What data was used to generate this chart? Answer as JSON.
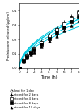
{
  "title": "",
  "xlabel": "Time (h)",
  "ylabel": "Prednisolone released (μg/cm²)",
  "xlim": [
    0,
    8
  ],
  "ylim": [
    0,
    0.45
  ],
  "yticks": [
    0.0,
    0.1,
    0.2,
    0.3,
    0.4
  ],
  "xticks": [
    0,
    1,
    2,
    3,
    4,
    5,
    6,
    7,
    8
  ],
  "series": [
    {
      "label": "kept for 1 day",
      "marker": "o",
      "marker_fill": "white",
      "marker_edge": "black",
      "x": [
        0,
        0.5,
        1,
        1.5,
        2,
        3,
        4,
        5,
        6,
        7,
        8
      ],
      "y": [
        0.0,
        0.058,
        0.088,
        0.112,
        0.135,
        0.178,
        0.222,
        0.265,
        0.305,
        0.348,
        0.388
      ]
    },
    {
      "label": "stored for 2 days",
      "marker": "+",
      "marker_fill": "black",
      "marker_edge": "black",
      "x": [
        0,
        0.5,
        1,
        1.5,
        2,
        3,
        4,
        5,
        6,
        7,
        8
      ],
      "y": [
        0.0,
        0.06,
        0.092,
        0.118,
        0.143,
        0.188,
        0.235,
        0.278,
        0.32,
        0.36,
        0.4
      ]
    },
    {
      "label": "stored for 4 days",
      "marker": "s",
      "marker_fill": "white",
      "marker_edge": "black",
      "x": [
        0,
        0.5,
        1,
        1.5,
        2,
        3,
        4,
        5,
        6,
        7,
        8
      ],
      "y": [
        0.0,
        0.055,
        0.086,
        0.11,
        0.133,
        0.178,
        0.222,
        0.265,
        0.305,
        0.345,
        0.385
      ]
    },
    {
      "label": "stored for 8 days",
      "marker": "s",
      "marker_fill": "black",
      "marker_edge": "black",
      "x": [
        0,
        0.5,
        1,
        1.5,
        2,
        3,
        4,
        5,
        6,
        7,
        8
      ],
      "y": [
        0.0,
        0.05,
        0.08,
        0.103,
        0.125,
        0.166,
        0.207,
        0.247,
        0.285,
        0.32,
        0.355
      ]
    },
    {
      "label": "stored for 10 days",
      "marker": "^",
      "marker_fill": "black",
      "marker_edge": "black",
      "x": [
        0,
        0.5,
        1,
        1.5,
        2,
        3,
        4,
        5,
        6,
        7,
        8
      ],
      "y": [
        0.0,
        0.044,
        0.072,
        0.093,
        0.113,
        0.151,
        0.188,
        0.225,
        0.26,
        0.294,
        0.328
      ]
    }
  ],
  "fit_color": "#00c8e0",
  "background_color": "#ffffff",
  "marker_size": 2.5,
  "line_width": 0.7,
  "axis_linewidth": 0.4,
  "tick_labelsize": 3.0,
  "xlabel_fontsize": 3.5,
  "ylabel_fontsize": 2.8,
  "legend_fontsize": 2.5,
  "legend_labels": [
    "kept for 1 day",
    "stored for 2 days",
    "stored for 4 days",
    "stored for 8 days",
    "stored for 10 days"
  ],
  "legend_markers": [
    "o",
    "+",
    "s",
    "s",
    "^"
  ],
  "legend_fills": [
    "white",
    "black",
    "white",
    "black",
    "black"
  ]
}
